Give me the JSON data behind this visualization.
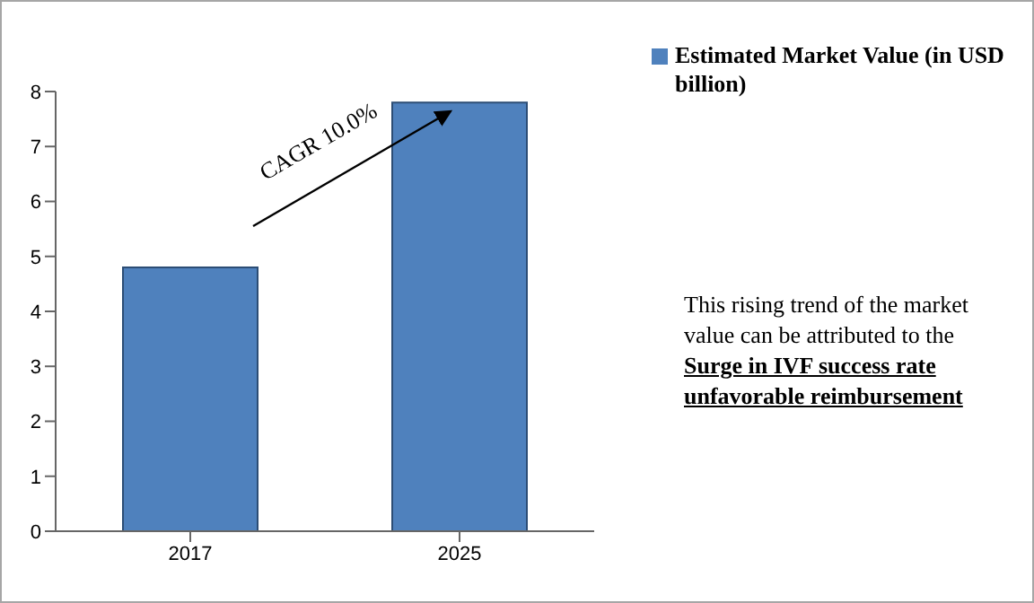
{
  "chart_data": {
    "type": "bar",
    "categories": [
      "2017",
      "2025"
    ],
    "series": [
      {
        "name": "Estimated Market Value (in USD billion)",
        "color": "#4f81bd",
        "values": [
          4.8,
          7.8
        ]
      }
    ],
    "ylim": [
      0,
      8
    ],
    "yticks": [
      0,
      1,
      2,
      3,
      4,
      5,
      6,
      7,
      8
    ],
    "grid": false,
    "legend": "top right",
    "annotations": [
      "CAGR 10.0%",
      "This rising trend of the market value can be attributed to the",
      "Surge in IVF success rate unfavorable reimbursement"
    ]
  }
}
